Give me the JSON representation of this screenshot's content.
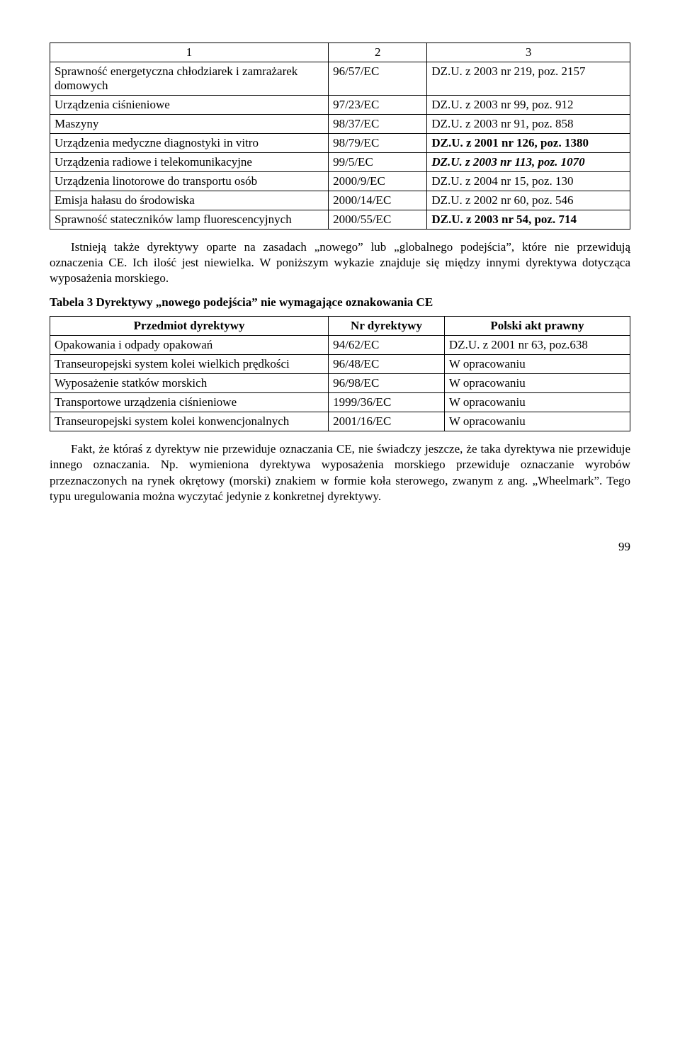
{
  "table1": {
    "header_cols": [
      "1",
      "2",
      "3"
    ],
    "rows": [
      {
        "c1": "Sprawność energetyczna chłodziarek i zamrażarek domowych",
        "c2": "96/57/EC",
        "c3": "DZ.U. z 2003 nr 219, poz. 2157"
      },
      {
        "c1": "Urządzenia ciśnieniowe",
        "c2": "97/23/EC",
        "c3": "DZ.U. z 2003 nr 99, poz. 912"
      },
      {
        "c1": "Maszyny",
        "c2": "98/37/EC",
        "c3": "DZ.U. z 2003 nr 91, poz. 858"
      },
      {
        "c1": "Urządzenia medyczne diagnostyki in vitro",
        "c2": "98/79/EC",
        "c3": "DZ.U. z 2001 nr 126, poz. 1380",
        "c3bold": true
      },
      {
        "c1": "Urządzenia radiowe i telekomunikacyjne",
        "c2": "99/5/EC",
        "c3": "DZ.U. z 2003 nr 113, poz. 1070",
        "c3italic": true,
        "c3bold": true
      },
      {
        "c1": "Urządzenia linotorowe do transportu osób",
        "c2": "2000/9/EC",
        "c3": "DZ.U. z 2004 nr 15, poz. 130"
      },
      {
        "c1": "Emisja hałasu do środowiska",
        "c2": "2000/14/EC",
        "c3": "DZ.U. z 2002 nr 60, poz. 546"
      },
      {
        "c1": "Sprawność stateczników lamp fluorescencyjnych",
        "c2": "2000/55/EC",
        "c3": "DZ.U. z 2003 nr 54, poz. 714",
        "c3bold": true
      }
    ]
  },
  "para1": "Istnieją także dyrektywy oparte na zasadach „nowego” lub „globalnego podejścia”, które nie przewidują oznaczenia CE. Ich ilość jest niewielka. W poniższym wykazie znajduje się między innymi dyrektywa dotycząca wyposażenia morskiego.",
  "table2_caption": "Tabela 3 Dyrektywy „nowego podejścia” nie wymagające oznakowania CE",
  "table2": {
    "header_cols": [
      "Przedmiot dyrektywy",
      "Nr dyrektywy",
      "Polski akt prawny"
    ],
    "rows": [
      {
        "c1": "Opakowania i odpady opakowań",
        "c2": "94/62/EC",
        "c3": "DZ.U. z 2001 nr 63, poz.638"
      },
      {
        "c1": "Transeuropejski system kolei wielkich prędkości",
        "c2": "96/48/EC",
        "c3": "W opracowaniu"
      },
      {
        "c1": "Wyposażenie statków morskich",
        "c2": "96/98/EC",
        "c3": "W opracowaniu"
      },
      {
        "c1": "Transportowe urządzenia ciśnieniowe",
        "c2": "1999/36/EC",
        "c3": "W opracowaniu"
      },
      {
        "c1": "Transeuropejski system kolei konwencjonalnych",
        "c2": "2001/16/EC",
        "c3": "W opracowaniu"
      }
    ]
  },
  "para2": "Fakt, że któraś z dyrektyw nie przewiduje oznaczania CE, nie świadczy jeszcze, że taka dyrektywa nie przewiduje innego oznaczania. Np. wymieniona dyrektywa wyposażenia morskiego przewiduje oznaczanie wyrobów przeznaczonych na rynek okrętowy (morski) znakiem w formie koła sterowego, zwanym z ang. „Wheelmark”. Tego typu uregulowania można wyczytać jedynie z konkretnej dyrektywy.",
  "page_number": "99"
}
